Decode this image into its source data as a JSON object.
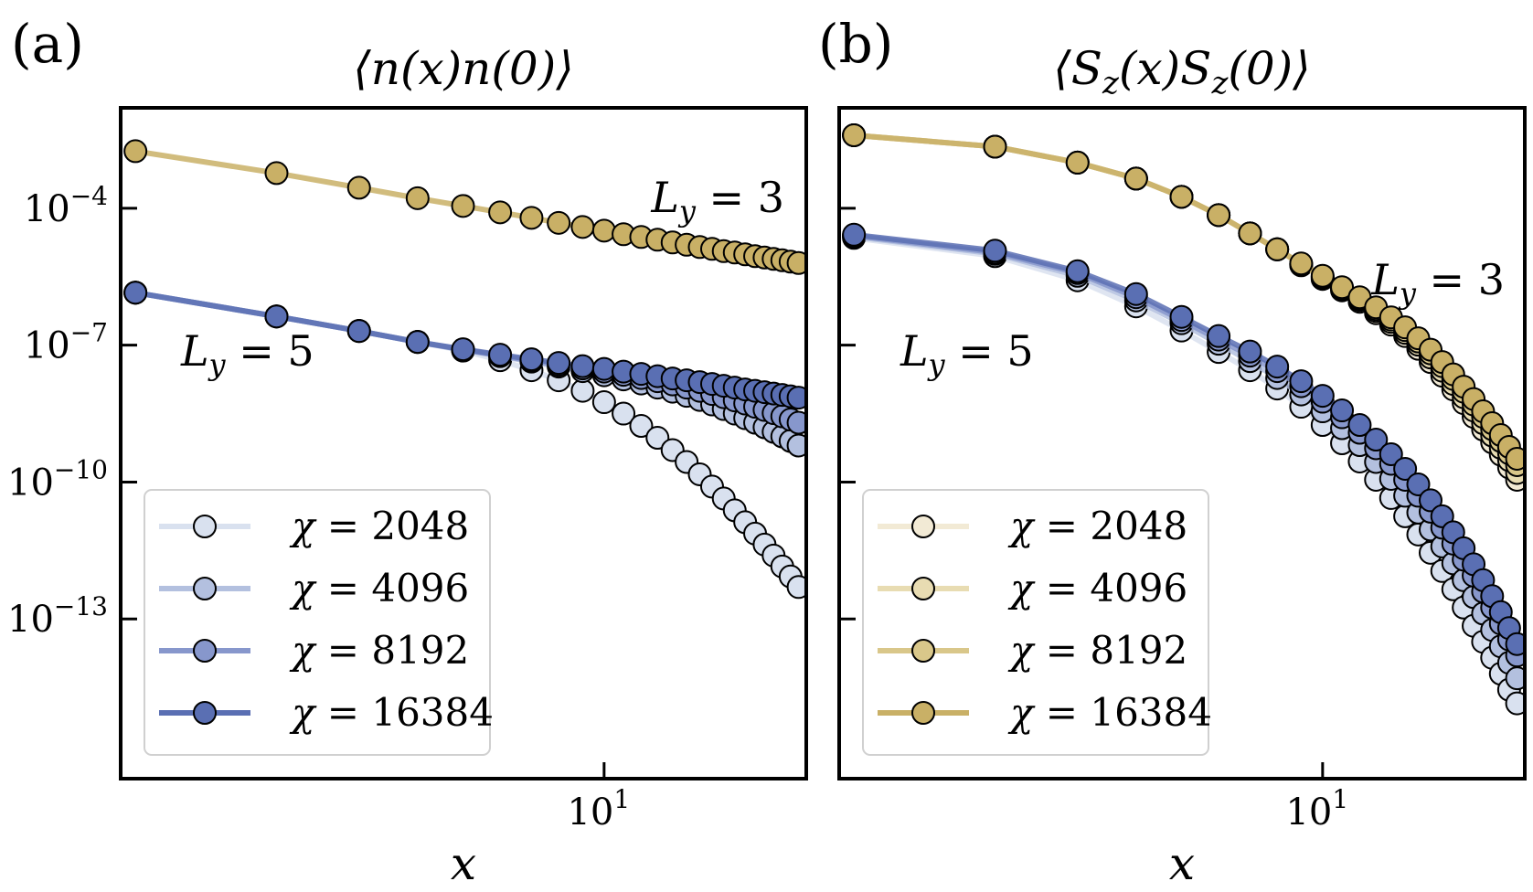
{
  "chart_data": [
    {
      "type": "scatter",
      "panel_label": "(a)",
      "title": "⟨n(x)n(0)⟩",
      "xlabel": "x",
      "ylabel": "",
      "xscale": "log",
      "yscale": "log",
      "xlim": [
        0.93,
        27
      ],
      "ylim_log10": [
        -16.5,
        -1.8
      ],
      "xticks": [
        {
          "value": 10,
          "label": "10",
          "exp": "1"
        }
      ],
      "yticks": [
        {
          "value_log10": -4,
          "label": "10",
          "exp": "−4"
        },
        {
          "value_log10": -7,
          "label": "10",
          "exp": "−7"
        },
        {
          "value_log10": -10,
          "label": "10",
          "exp": "−10"
        },
        {
          "value_log10": -13,
          "label": "10",
          "exp": "−13"
        }
      ],
      "x": [
        1,
        2,
        3,
        4,
        5,
        6,
        7,
        8,
        9,
        10,
        11,
        12,
        13,
        14,
        15,
        16,
        17,
        18,
        19,
        20,
        21,
        22,
        23,
        24,
        25,
        26
      ],
      "annotations": [
        {
          "text": "L",
          "sub": "y",
          "rest": " = 3",
          "anchor": "top-right"
        },
        {
          "text": "L",
          "sub": "y",
          "rest": " = 5",
          "anchor": "left"
        }
      ],
      "legend": {
        "placement": "lower-left",
        "entries": [
          "2048",
          "4096",
          "8192",
          "16384"
        ],
        "symbol": "χ"
      },
      "series": [
        {
          "name": "Ly=3, χ=16384",
          "group": "Ly3",
          "color": "#c9b066",
          "values_log10": [
            -2.75,
            -3.23,
            -3.55,
            -3.78,
            -3.95,
            -4.09,
            -4.21,
            -4.32,
            -4.41,
            -4.49,
            -4.57,
            -4.63,
            -4.69,
            -4.75,
            -4.8,
            -4.85,
            -4.89,
            -4.94,
            -4.97,
            -5.01,
            -5.05,
            -5.08,
            -5.11,
            -5.14,
            -5.17,
            -5.2
          ]
        },
        {
          "name": "Ly=5, χ=2048",
          "group": "Ly5",
          "color": "#d9e1ef",
          "values_log10": [
            -5.85,
            -6.37,
            -6.69,
            -6.93,
            -7.12,
            -7.33,
            -7.55,
            -7.77,
            -8.0,
            -8.25,
            -8.5,
            -8.77,
            -9.03,
            -9.3,
            -9.56,
            -9.83,
            -10.1,
            -10.36,
            -10.62,
            -10.88,
            -11.13,
            -11.37,
            -11.61,
            -11.85,
            -12.07,
            -12.3
          ]
        },
        {
          "name": "Ly=5, χ=4096",
          "group": "Ly5",
          "color": "#b3c0df",
          "values_log10": [
            -5.85,
            -6.37,
            -6.69,
            -6.93,
            -7.1,
            -7.24,
            -7.36,
            -7.47,
            -7.57,
            -7.66,
            -7.75,
            -7.84,
            -7.93,
            -8.02,
            -8.11,
            -8.2,
            -8.3,
            -8.4,
            -8.5,
            -8.6,
            -8.7,
            -8.8,
            -8.9,
            -9.0,
            -9.1,
            -9.2
          ]
        },
        {
          "name": "Ly=5, χ=8192",
          "group": "Ly5",
          "color": "#8797cc",
          "values_log10": [
            -5.85,
            -6.37,
            -6.69,
            -6.93,
            -7.1,
            -7.23,
            -7.34,
            -7.43,
            -7.51,
            -7.58,
            -7.65,
            -7.72,
            -7.79,
            -7.86,
            -7.93,
            -8.0,
            -8.07,
            -8.14,
            -8.21,
            -8.28,
            -8.35,
            -8.42,
            -8.49,
            -8.56,
            -8.63,
            -8.7
          ]
        },
        {
          "name": "Ly=5, χ=16384",
          "group": "Ly5",
          "color": "#5a6fb3",
          "values_log10": [
            -5.85,
            -6.37,
            -6.69,
            -6.93,
            -7.09,
            -7.21,
            -7.31,
            -7.39,
            -7.46,
            -7.52,
            -7.58,
            -7.63,
            -7.68,
            -7.73,
            -7.77,
            -7.81,
            -7.85,
            -7.89,
            -7.93,
            -7.97,
            -8.0,
            -8.03,
            -8.06,
            -8.09,
            -8.12,
            -8.15
          ]
        }
      ]
    },
    {
      "type": "scatter",
      "panel_label": "(b)",
      "title": "⟨S_z(x)S_z(0)⟩",
      "xlabel": "x",
      "ylabel": "",
      "xscale": "log",
      "yscale": "log",
      "xlim": [
        0.93,
        27
      ],
      "ylim_log10": [
        -16.5,
        -1.8
      ],
      "xticks": [
        {
          "value": 10,
          "label": "10",
          "exp": "1"
        }
      ],
      "yticks": [
        {
          "value_log10": -4,
          "label": "",
          "exp": ""
        },
        {
          "value_log10": -7,
          "label": "",
          "exp": ""
        },
        {
          "value_log10": -10,
          "label": "",
          "exp": ""
        },
        {
          "value_log10": -13,
          "label": "",
          "exp": ""
        }
      ],
      "x": [
        1,
        2,
        3,
        4,
        5,
        6,
        7,
        8,
        9,
        10,
        11,
        12,
        13,
        14,
        15,
        16,
        17,
        18,
        19,
        20,
        21,
        22,
        23,
        24,
        25,
        26
      ],
      "annotations": [
        {
          "text": "L",
          "sub": "y",
          "rest": " = 3",
          "anchor": "right"
        },
        {
          "text": "L",
          "sub": "y",
          "rest": " = 5",
          "anchor": "left"
        }
      ],
      "legend": {
        "placement": "lower-left",
        "entries": [
          "2048",
          "4096",
          "8192",
          "16384"
        ],
        "symbol": "χ"
      },
      "series": [
        {
          "name": "Ly=3, χ=2048",
          "group": "Ly3",
          "color": "#f2ead5",
          "values_log10": [
            -2.4,
            -2.65,
            -3.0,
            -3.35,
            -3.75,
            -4.15,
            -4.55,
            -4.9,
            -5.25,
            -5.55,
            -5.8,
            -6.05,
            -6.3,
            -6.55,
            -6.8,
            -7.08,
            -7.37,
            -7.67,
            -7.97,
            -8.27,
            -8.57,
            -8.85,
            -9.13,
            -9.4,
            -9.68,
            -9.95
          ]
        },
        {
          "name": "Ly=3, χ=4096",
          "group": "Ly3",
          "color": "#e8dcb2",
          "values_log10": [
            -2.4,
            -2.65,
            -3.0,
            -3.35,
            -3.75,
            -4.15,
            -4.55,
            -4.9,
            -5.23,
            -5.52,
            -5.77,
            -6.01,
            -6.25,
            -6.49,
            -6.73,
            -6.99,
            -7.27,
            -7.56,
            -7.85,
            -8.14,
            -8.43,
            -8.71,
            -8.98,
            -9.25,
            -9.52,
            -9.8
          ]
        },
        {
          "name": "Ly=3, χ=8192",
          "group": "Ly3",
          "color": "#d9c78a",
          "values_log10": [
            -2.4,
            -2.65,
            -3.0,
            -3.35,
            -3.75,
            -4.15,
            -4.55,
            -4.9,
            -5.22,
            -5.5,
            -5.75,
            -5.98,
            -6.21,
            -6.44,
            -6.67,
            -6.92,
            -7.18,
            -7.46,
            -7.74,
            -8.02,
            -8.3,
            -8.57,
            -8.84,
            -9.1,
            -9.37,
            -9.63
          ]
        },
        {
          "name": "Ly=3, χ=16384",
          "group": "Ly3",
          "color": "#c9b066",
          "values_log10": [
            -2.4,
            -2.65,
            -3.0,
            -3.35,
            -3.75,
            -4.15,
            -4.55,
            -4.9,
            -5.21,
            -5.48,
            -5.73,
            -5.95,
            -6.17,
            -6.39,
            -6.61,
            -6.85,
            -7.1,
            -7.37,
            -7.64,
            -7.91,
            -8.18,
            -8.45,
            -8.71,
            -8.97,
            -9.23,
            -9.49
          ]
        },
        {
          "name": "Ly=5, χ=2048",
          "group": "Ly5",
          "color": "#d9e1ef",
          "values_log10": [
            -4.65,
            -5.05,
            -5.58,
            -6.15,
            -6.68,
            -7.15,
            -7.55,
            -7.95,
            -8.35,
            -8.75,
            -9.15,
            -9.55,
            -9.95,
            -10.35,
            -10.75,
            -11.15,
            -11.55,
            -11.95,
            -12.35,
            -12.75,
            -13.15,
            -13.5,
            -13.85,
            -14.2,
            -14.55,
            -14.85
          ]
        },
        {
          "name": "Ly=5, χ=4096",
          "group": "Ly5",
          "color": "#b3c0df",
          "values_log10": [
            -4.62,
            -5.0,
            -5.48,
            -6.02,
            -6.52,
            -6.97,
            -7.35,
            -7.72,
            -8.08,
            -8.45,
            -8.82,
            -9.19,
            -9.56,
            -9.93,
            -10.3,
            -10.67,
            -11.04,
            -11.41,
            -11.78,
            -12.15,
            -12.52,
            -12.88,
            -13.24,
            -13.6,
            -13.96,
            -14.3
          ]
        },
        {
          "name": "Ly=5, χ=8192",
          "group": "Ly5",
          "color": "#8797cc",
          "values_log10": [
            -4.6,
            -4.97,
            -5.42,
            -5.95,
            -6.45,
            -6.88,
            -7.23,
            -7.57,
            -7.9,
            -8.24,
            -8.58,
            -8.92,
            -9.26,
            -9.6,
            -9.95,
            -10.3,
            -10.65,
            -11.0,
            -11.35,
            -11.7,
            -12.05,
            -12.4,
            -12.75,
            -13.1,
            -13.45,
            -13.8
          ]
        },
        {
          "name": "Ly=5, χ=16384",
          "group": "Ly5",
          "color": "#5a6fb3",
          "values_log10": [
            -4.58,
            -4.93,
            -5.38,
            -5.88,
            -6.38,
            -6.8,
            -7.14,
            -7.47,
            -7.79,
            -8.11,
            -8.43,
            -8.75,
            -9.07,
            -9.39,
            -9.71,
            -10.05,
            -10.4,
            -10.75,
            -11.1,
            -11.45,
            -11.8,
            -12.15,
            -12.5,
            -12.85,
            -13.2,
            -13.55
          ]
        }
      ]
    }
  ]
}
